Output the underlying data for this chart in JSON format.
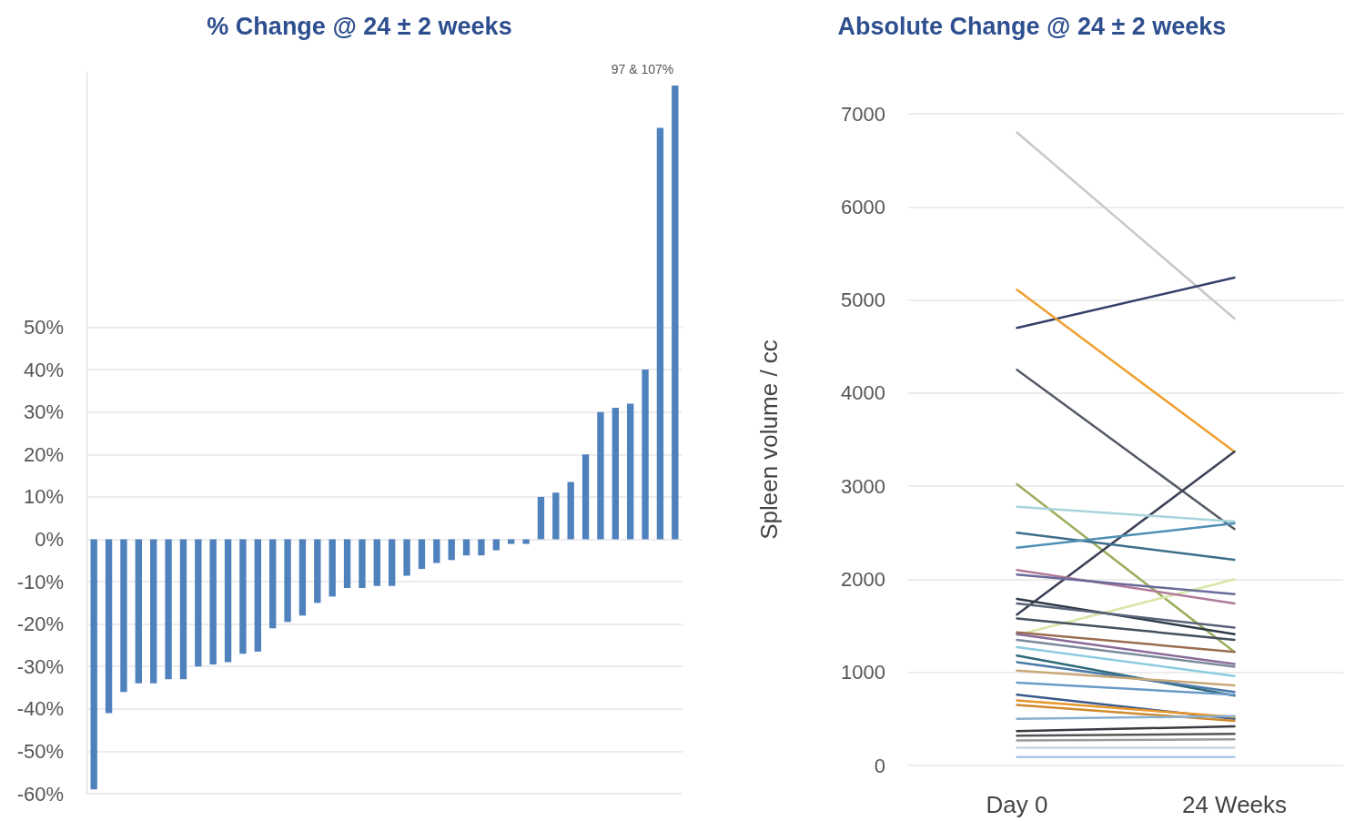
{
  "chart_data": [
    {
      "type": "bar",
      "title": "% Change @ 24 ± 2 weeks",
      "categories": [
        null,
        null,
        null,
        null,
        null,
        null,
        null,
        null,
        null,
        null,
        null,
        null,
        null,
        null,
        null,
        null,
        null,
        null,
        null,
        null,
        null,
        null,
        null,
        null,
        null,
        null,
        null,
        null,
        null,
        null,
        null,
        null,
        null,
        null,
        null,
        null,
        null,
        null,
        null,
        null
      ],
      "values": [
        -59,
        -41,
        -36,
        -34,
        -34,
        -33,
        -33,
        -30,
        -29.5,
        -29,
        -27,
        -26.5,
        -21,
        -19.5,
        -18,
        -15,
        -13.5,
        -11.5,
        -11.5,
        -11,
        -11,
        -8.6,
        -7,
        -5.6,
        -4.9,
        -3.8,
        -3.8,
        -2.6,
        -1.1,
        -1.1,
        10,
        11,
        13.5,
        20,
        30,
        31,
        32,
        40,
        97,
        107
      ],
      "color": "#4f81bd",
      "ylim": [
        -60,
        110
      ],
      "yticks": [
        {
          "value": -60,
          "label": "-60%"
        },
        {
          "value": -50,
          "label": "-50%"
        },
        {
          "value": -40,
          "label": "-40%"
        },
        {
          "value": -30,
          "label": "-30%"
        },
        {
          "value": -20,
          "label": "-20%"
        },
        {
          "value": -10,
          "label": "-10%"
        },
        {
          "value": 0,
          "label": "0%"
        },
        {
          "value": 10,
          "label": "10%"
        },
        {
          "value": 20,
          "label": "20%"
        },
        {
          "value": 30,
          "label": "30%"
        },
        {
          "value": 40,
          "label": "40%"
        },
        {
          "value": 50,
          "label": "50%"
        }
      ],
      "annotations": [
        "97 & 107%"
      ],
      "grid": "y"
    },
    {
      "type": "line",
      "title": "Absolute Change @ 24 ± 2 weeks",
      "ylabel": "Spleen volume / cc",
      "categories": [
        "Day 0",
        "24 Weeks"
      ],
      "series": [
        {
          "color": "#c8c8c8",
          "values": [
            6800,
            4800
          ]
        },
        {
          "color": "#34416b",
          "values": [
            4700,
            5240
          ]
        },
        {
          "color": "#f0a030",
          "values": [
            5110,
            3370
          ]
        },
        {
          "color": "#555a66",
          "values": [
            4250,
            2540
          ]
        },
        {
          "color": "#9aae5a",
          "values": [
            3020,
            1220
          ]
        },
        {
          "color": "#3c4256",
          "values": [
            1620,
            3370
          ]
        },
        {
          "color": "#a8d4dc",
          "values": [
            2780,
            2620
          ]
        },
        {
          "color": "#3d6f8a",
          "values": [
            2500,
            2210
          ]
        },
        {
          "color": "#4f8fb5",
          "values": [
            2340,
            2600
          ]
        },
        {
          "color": "#d8e6a8",
          "values": [
            1400,
            2000
          ]
        },
        {
          "color": "#b07a9a",
          "values": [
            2100,
            1740
          ]
        },
        {
          "color": "#6a6a9a",
          "values": [
            2050,
            1840
          ]
        },
        {
          "color": "#2f3a48",
          "values": [
            1790,
            1410
          ]
        },
        {
          "color": "#5a6478",
          "values": [
            1740,
            1480
          ]
        },
        {
          "color": "#44505e",
          "values": [
            1580,
            1350
          ]
        },
        {
          "color": "#9a6e4e",
          "values": [
            1430,
            1220
          ]
        },
        {
          "color": "#8a6a9a",
          "values": [
            1410,
            1090
          ]
        },
        {
          "color": "#7a8a9a",
          "values": [
            1350,
            1060
          ]
        },
        {
          "color": "#8ccbe0",
          "values": [
            1270,
            960
          ]
        },
        {
          "color": "#2e6a7a",
          "values": [
            1180,
            750
          ]
        },
        {
          "color": "#4a7aa8",
          "values": [
            1110,
            790
          ]
        },
        {
          "color": "#c8a878",
          "values": [
            1020,
            860
          ]
        },
        {
          "color": "#6a9ac8",
          "values": [
            890,
            760
          ]
        },
        {
          "color": "#3a5a8a",
          "values": [
            760,
            500
          ]
        },
        {
          "color": "#e8962a",
          "values": [
            700,
            520
          ]
        },
        {
          "color": "#d08a30",
          "values": [
            650,
            480
          ]
        },
        {
          "color": "#8ab0d0",
          "values": [
            500,
            530
          ]
        },
        {
          "color": "#3a3a42",
          "values": [
            370,
            420
          ]
        },
        {
          "color": "#555555",
          "values": [
            320,
            340
          ]
        },
        {
          "color": "#9a9a9a",
          "values": [
            270,
            280
          ]
        },
        {
          "color": "#c8d8e0",
          "values": [
            190,
            190
          ]
        },
        {
          "color": "#a8c8e8",
          "values": [
            90,
            90
          ]
        }
      ],
      "ylim": [
        0,
        7000
      ],
      "yticks": [
        0,
        1000,
        2000,
        3000,
        4000,
        5000,
        6000,
        7000
      ],
      "grid": "y",
      "marker": "none"
    }
  ]
}
